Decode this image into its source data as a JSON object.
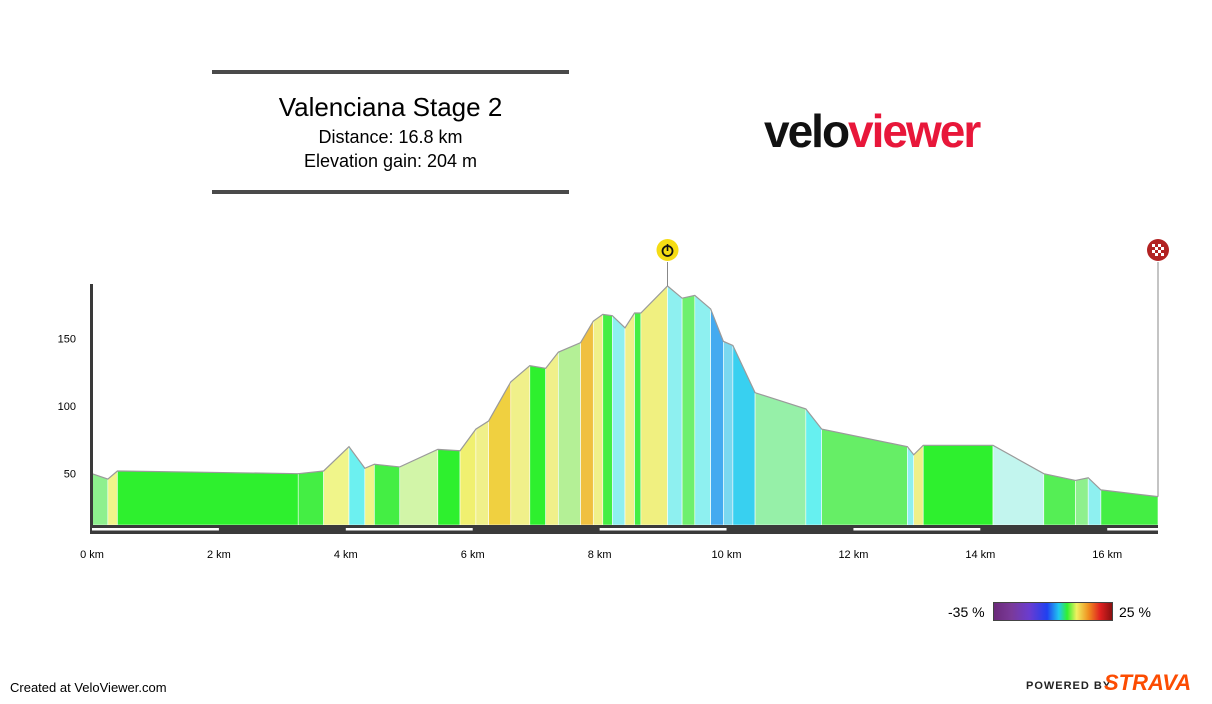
{
  "header": {
    "title": "Valenciana Stage 2",
    "distance": "Distance: 16.8 km",
    "elevation_gain": "Elevation gain: 204 m"
  },
  "logo": {
    "part1": "velo",
    "part2": "viewer"
  },
  "footer": {
    "credit": "Created at VeloViewer.com",
    "powered": "POWERED BY",
    "brand": "STRAVA"
  },
  "scale": {
    "min_label": "-35 %",
    "max_label": "25 %"
  },
  "colors": {
    "axis": "#3a3a3a",
    "brand_red": "#e8173a",
    "strava_orange": "#fc4c02"
  },
  "markers": [
    {
      "name": "timer-marker-icon",
      "km": 9.07,
      "icon": "stopwatch"
    },
    {
      "name": "finish-flag-icon",
      "km": 16.8,
      "icon": "checkered-flag"
    }
  ],
  "chart_data": {
    "type": "area",
    "xlabel": "",
    "ylabel": "",
    "xlim": [
      0,
      16.8
    ],
    "ylim": [
      12,
      189
    ],
    "xticks": [
      0,
      2,
      4,
      6,
      8,
      10,
      12,
      14,
      16
    ],
    "xtick_labels": [
      "0 km",
      "2 km",
      "4 km",
      "6 km",
      "8 km",
      "10 km",
      "12 km",
      "14 km",
      "16 km"
    ],
    "yticks": [
      50,
      100,
      150
    ],
    "ytick_labels": [
      "50",
      "100",
      "150"
    ],
    "profile": [
      {
        "x": 0.0,
        "y": 50,
        "c": "#8ef08e"
      },
      {
        "x": 0.25,
        "y": 46,
        "c": "#f0f58a"
      },
      {
        "x": 0.4,
        "y": 52,
        "c": "#2ef02e"
      },
      {
        "x": 3.25,
        "y": 50,
        "c": "#44ee44"
      },
      {
        "x": 3.65,
        "y": 52,
        "c": "#f0f58a"
      },
      {
        "x": 4.05,
        "y": 70,
        "c": "#6cf0f0"
      },
      {
        "x": 4.3,
        "y": 54,
        "c": "#f0f58a"
      },
      {
        "x": 4.45,
        "y": 57,
        "c": "#44ee44"
      },
      {
        "x": 4.85,
        "y": 55,
        "c": "#d2f5a8"
      },
      {
        "x": 5.45,
        "y": 68,
        "c": "#2ef02e"
      },
      {
        "x": 5.8,
        "y": 67,
        "c": "#f0f070"
      },
      {
        "x": 6.05,
        "y": 83,
        "c": "#f0f08a"
      },
      {
        "x": 6.25,
        "y": 89,
        "c": "#f0d040"
      },
      {
        "x": 6.6,
        "y": 118,
        "c": "#f0f08a"
      },
      {
        "x": 6.9,
        "y": 130,
        "c": "#2ef02e"
      },
      {
        "x": 7.15,
        "y": 128,
        "c": "#f0f08a"
      },
      {
        "x": 7.35,
        "y": 140,
        "c": "#b4f096"
      },
      {
        "x": 7.7,
        "y": 147,
        "c": "#f0c040"
      },
      {
        "x": 7.9,
        "y": 163,
        "c": "#f0f08a"
      },
      {
        "x": 8.05,
        "y": 168,
        "c": "#44ee44"
      },
      {
        "x": 8.2,
        "y": 167,
        "c": "#8ef0f0"
      },
      {
        "x": 8.4,
        "y": 158,
        "c": "#f0f08a"
      },
      {
        "x": 8.55,
        "y": 169,
        "c": "#44ee44"
      },
      {
        "x": 8.65,
        "y": 169,
        "c": "#f0f080"
      },
      {
        "x": 9.07,
        "y": 189,
        "c": "#8ef0f0"
      },
      {
        "x": 9.3,
        "y": 180,
        "c": "#6ef06e"
      },
      {
        "x": 9.5,
        "y": 182,
        "c": "#8ef0f0"
      },
      {
        "x": 9.75,
        "y": 172,
        "c": "#44aaf0"
      },
      {
        "x": 9.95,
        "y": 148,
        "c": "#7ad8f0"
      },
      {
        "x": 10.1,
        "y": 145,
        "c": "#38d0f0"
      },
      {
        "x": 10.45,
        "y": 110,
        "c": "#96f0a8"
      },
      {
        "x": 11.25,
        "y": 98,
        "c": "#66f0f0"
      },
      {
        "x": 11.5,
        "y": 83,
        "c": "#66ee66"
      },
      {
        "x": 12.85,
        "y": 70,
        "c": "#8ef0f0"
      },
      {
        "x": 12.95,
        "y": 64,
        "c": "#f0f08a"
      },
      {
        "x": 13.1,
        "y": 71,
        "c": "#2ef02e"
      },
      {
        "x": 14.2,
        "y": 71,
        "c": "#c2f5ee"
      },
      {
        "x": 15.0,
        "y": 50,
        "c": "#55ee55"
      },
      {
        "x": 15.5,
        "y": 45,
        "c": "#8ef08e"
      },
      {
        "x": 15.7,
        "y": 47,
        "c": "#8ef0f0"
      },
      {
        "x": 15.9,
        "y": 38,
        "c": "#44ee44"
      },
      {
        "x": 16.8,
        "y": 33,
        "c": null
      }
    ],
    "grade_scale": {
      "min": -35,
      "max": 25,
      "unit": "%"
    }
  }
}
